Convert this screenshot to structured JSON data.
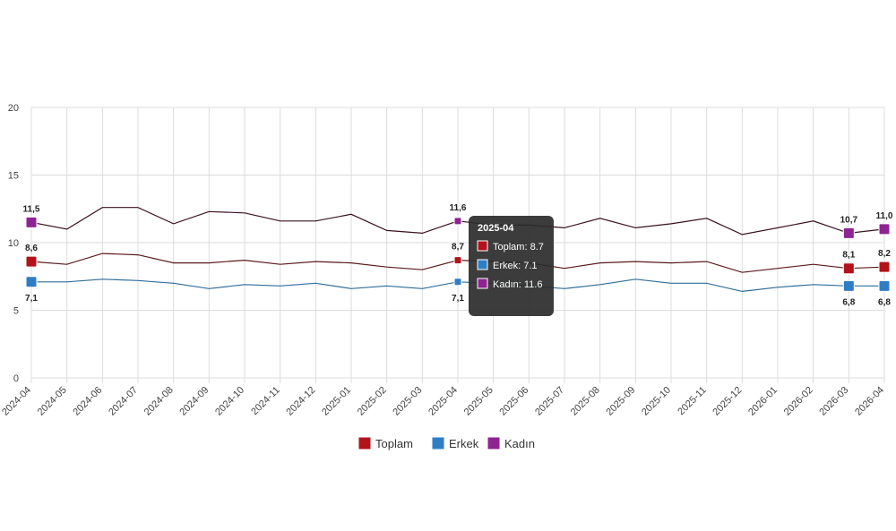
{
  "chart_data": {
    "type": "line",
    "x": [
      "2024-04",
      "2024-05",
      "2024-06",
      "2024-07",
      "2024-08",
      "2024-09",
      "2024-10",
      "2024-11",
      "2024-12",
      "2025-01",
      "2025-02",
      "2025-03",
      "2025-04",
      "2025-05",
      "2025-06",
      "2025-07",
      "2025-08",
      "2025-09",
      "2025-10",
      "2025-11",
      "2025-12",
      "2026-01",
      "2026-02",
      "2026-03",
      "2026-04"
    ],
    "ylim": [
      0,
      20
    ],
    "yticks": [
      0,
      5,
      10,
      15,
      20
    ],
    "grid": true,
    "legend_position": "bottom",
    "series": [
      {
        "name": "Toplam",
        "color": "#b3121a",
        "line_color": "#5a1a1a",
        "values": [
          8.6,
          8.4,
          9.2,
          9.1,
          8.5,
          8.5,
          8.7,
          8.4,
          8.6,
          8.5,
          8.2,
          8.0,
          8.7,
          8.6,
          8.5,
          8.1,
          8.5,
          8.6,
          8.5,
          8.6,
          7.8,
          8.1,
          8.4,
          8.1,
          8.2
        ]
      },
      {
        "name": "Erkek",
        "color": "#2f7ec4",
        "line_color": "#2f6e99",
        "values": [
          7.1,
          7.1,
          7.3,
          7.2,
          7.0,
          6.6,
          6.9,
          6.8,
          7.0,
          6.6,
          6.8,
          6.6,
          7.1,
          7.0,
          6.8,
          6.6,
          6.9,
          7.3,
          7.0,
          7.0,
          6.4,
          6.7,
          6.9,
          6.8,
          6.8
        ]
      },
      {
        "name": "Kadın",
        "color": "#8e2491",
        "line_color": "#3a1020",
        "values": [
          11.5,
          11.0,
          12.6,
          12.6,
          11.4,
          12.3,
          12.2,
          11.6,
          11.6,
          12.1,
          10.9,
          10.7,
          11.6,
          11.3,
          11.3,
          11.1,
          11.8,
          11.1,
          11.4,
          11.8,
          10.6,
          11.1,
          11.6,
          10.7,
          11.0
        ]
      }
    ],
    "data_labels": [
      {
        "series": 0,
        "index": 0,
        "text": "8,6"
      },
      {
        "series": 1,
        "index": 0,
        "text": "7,1"
      },
      {
        "series": 2,
        "index": 0,
        "text": "11,5"
      },
      {
        "series": 0,
        "index": 12,
        "text": "8,7"
      },
      {
        "series": 1,
        "index": 12,
        "text": "7,1"
      },
      {
        "series": 2,
        "index": 12,
        "text": "11,6"
      },
      {
        "series": 0,
        "index": 23,
        "text": "8,1"
      },
      {
        "series": 1,
        "index": 23,
        "text": "6,8"
      },
      {
        "series": 2,
        "index": 23,
        "text": "10,7"
      },
      {
        "series": 0,
        "index": 24,
        "text": "8,2"
      },
      {
        "series": 1,
        "index": 24,
        "text": "6,8"
      },
      {
        "series": 2,
        "index": 24,
        "text": "11,0"
      }
    ],
    "tooltip": {
      "index": 12,
      "title": "2025-04",
      "rows": [
        "Toplam: 8.7",
        "Erkek: 7.1",
        "Kadın: 11.6"
      ]
    }
  }
}
